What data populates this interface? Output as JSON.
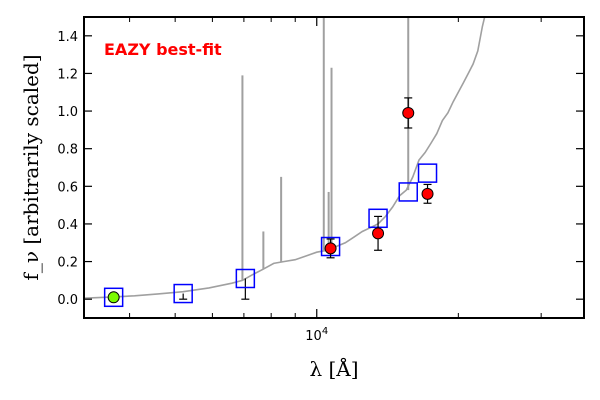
{
  "chart_data": {
    "type": "scatter",
    "annotation": "EAZY best-fit",
    "xlabel": "λ [Å]",
    "ylabel": "f_ν [arbitrarily scaled]",
    "xscale": "log",
    "xlim": [
      3200,
      37000
    ],
    "ylim": [
      -0.1,
      1.5
    ],
    "yticks": [
      "0.0",
      "0.2",
      "0.4",
      "0.6",
      "0.8",
      "1.0",
      "1.2",
      "1.4"
    ],
    "xtick_labels": [
      {
        "value": 10000,
        "label": "10^4"
      }
    ],
    "grid": false,
    "series": [
      {
        "kind": "line",
        "role": "template",
        "color": "#a0a0a0",
        "x": [
          3200,
          3700,
          4100,
          4600,
          5200,
          5900,
          6600,
          6950,
          7300,
          7700,
          8100,
          8500,
          9000,
          9500,
          10000,
          10500,
          11000,
          11500,
          12000,
          12500,
          13000,
          13500,
          14000,
          14500,
          15000,
          15500,
          16000,
          16500,
          17000,
          17500,
          18000,
          18500,
          19000,
          19500,
          20000,
          20500,
          21000,
          21500,
          22000,
          22500,
          23000
        ],
        "y": [
          0.005,
          0.012,
          0.018,
          0.028,
          0.04,
          0.06,
          0.085,
          0.1,
          0.13,
          0.16,
          0.19,
          0.2,
          0.21,
          0.23,
          0.25,
          0.26,
          0.28,
          0.3,
          0.33,
          0.36,
          0.38,
          0.4,
          0.44,
          0.49,
          0.55,
          0.58,
          0.65,
          0.74,
          0.78,
          0.83,
          0.88,
          0.95,
          0.99,
          1.05,
          1.1,
          1.15,
          1.2,
          1.25,
          1.32,
          1.45,
          1.55
        ]
      },
      {
        "kind": "emission-lines",
        "role": "template emission lines",
        "color": "#a0a0a0",
        "lines": [
          {
            "x": 6950,
            "base": 0.1,
            "top": 1.19
          },
          {
            "x": 7700,
            "base": 0.16,
            "top": 0.36
          },
          {
            "x": 8400,
            "base": 0.2,
            "top": 0.65
          },
          {
            "x": 10350,
            "base": 0.26,
            "top": 1.5
          },
          {
            "x": 10600,
            "base": 0.27,
            "top": 0.57
          },
          {
            "x": 10750,
            "base": 0.27,
            "top": 1.23
          },
          {
            "x": 15650,
            "base": 0.58,
            "top": 1.5
          }
        ]
      },
      {
        "kind": "model-photometry",
        "marker": "open-square",
        "color": "#0000ff",
        "x": [
          3700,
          5200,
          7050,
          10700,
          13500,
          15650,
          17200
        ],
        "y": [
          0.01,
          0.03,
          0.11,
          0.28,
          0.43,
          0.57,
          0.67
        ]
      },
      {
        "kind": "observed",
        "marker": "filled-circle",
        "color": "#ff0000",
        "x": [
          10700,
          13500,
          15650,
          17200
        ],
        "y": [
          0.27,
          0.35,
          0.99,
          0.56
        ],
        "yerr": [
          0.05,
          0.09,
          0.08,
          0.05
        ]
      },
      {
        "kind": "observed-other",
        "marker": "filled-circle",
        "color": "#7cfc00",
        "x": [
          3700
        ],
        "y": [
          0.01
        ],
        "yerr": [
          0.0
        ]
      },
      {
        "kind": "upper-limit-errorbars",
        "color": "#000000",
        "bars": [
          {
            "x": 5200,
            "y0": 0.03,
            "y1": 0.0
          },
          {
            "x": 7050,
            "y0": 0.11,
            "y1": 0.0
          }
        ]
      }
    ]
  }
}
